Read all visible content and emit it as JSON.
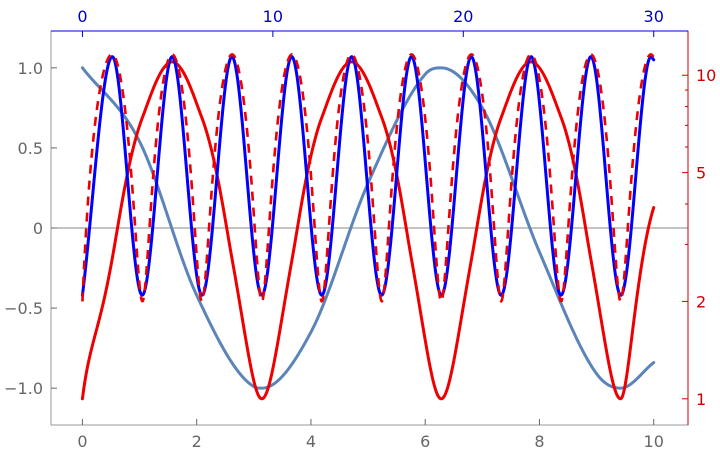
{
  "chart_data": {
    "type": "line",
    "title": "",
    "grid": false,
    "legend": "none",
    "axes": {
      "bottom": {
        "label": "",
        "range": [
          -0.55,
          10.6
        ],
        "ticks": [
          0,
          2,
          4,
          6,
          8,
          10
        ],
        "tick_labels": [
          "0",
          "2",
          "4",
          "6",
          "8",
          "10"
        ],
        "color": "#666666"
      },
      "left": {
        "label": "",
        "range": [
          -1.23,
          1.23
        ],
        "ticks": [
          -1.0,
          -0.5,
          0,
          0.5,
          1.0
        ],
        "tick_labels": [
          "−1.0",
          "−0.5",
          "0",
          "0.5",
          "1.0"
        ],
        "color": "#666666"
      },
      "top": {
        "label": "",
        "range": [
          -1.65,
          31.8
        ],
        "ticks": [
          0,
          10,
          20,
          30
        ],
        "tick_labels": [
          "0",
          "10",
          "20",
          "30"
        ],
        "color": "#0000cc"
      },
      "right": {
        "label": "",
        "scale": "log",
        "range": [
          0.83,
          13.7
        ],
        "ticks": [
          1,
          2,
          5,
          10
        ],
        "tick_labels": [
          "1",
          "2",
          "5",
          "10"
        ],
        "color": "#cc0000"
      }
    },
    "series": [
      {
        "description": "cos(x), plotted against bottom and left axes",
        "color": "#5b84b8",
        "axes": [
          "bottom",
          "left"
        ],
        "x": [
          0,
          1,
          2,
          3,
          3.14,
          4,
          5,
          6,
          6.28,
          7,
          8,
          9,
          9.42,
          10
        ],
        "y": [
          1.0,
          0.54,
          -0.42,
          -0.99,
          -1.0,
          -0.65,
          0.28,
          0.96,
          1.0,
          0.75,
          -0.15,
          -0.91,
          -1.0,
          -0.84
        ]
      },
      {
        "description": "exp(1 - cos(x)) oscillation with period 2π/3 on the bottom axis, plotted against bottom and right axes",
        "color": "#ee0000",
        "axes": [
          "bottom",
          "right"
        ],
        "x": [
          0,
          0.52,
          1.05,
          1.57,
          2.09,
          2.62,
          3.14,
          3.67,
          4.19,
          4.71,
          5.24,
          5.76,
          6.28,
          6.81,
          7.33,
          7.85,
          8.38,
          8.9,
          9.42,
          10
        ],
        "y": [
          1.0,
          2.7,
          7.4,
          11.0,
          7.4,
          2.7,
          1.0,
          2.7,
          7.4,
          11.0,
          7.4,
          2.7,
          1.0,
          2.7,
          7.4,
          11.0,
          7.4,
          2.7,
          1.0,
          3.9
        ]
      },
      {
        "description": "fast oscillation, period 2π on the top axis, plotted against top and left axes",
        "color": "#0000ff",
        "axes": [
          "top",
          "left"
        ],
        "x": [
          0,
          1.57,
          3.14,
          4.71,
          6.28,
          7.85,
          9.42,
          10.99,
          12.57,
          14.14,
          15.71,
          17.28,
          18.85,
          20.42,
          21.99,
          23.56,
          25.13,
          26.7,
          28.27,
          29.85,
          30
        ],
        "y": [
          -0.42,
          1.07,
          -0.42,
          1.07,
          -0.42,
          1.07,
          -0.42,
          1.07,
          -0.42,
          1.07,
          -0.42,
          1.07,
          -0.42,
          1.07,
          -0.42,
          1.07,
          -0.42,
          1.07,
          -0.42,
          1.07,
          1.05
        ]
      },
      {
        "description": "fast oscillation drawn dashed over the blue curve, plotted against bottom and right axes",
        "color": "#ee0000",
        "style": "dashed",
        "axes": [
          "bottom",
          "right"
        ],
        "x": [
          0,
          0.52,
          1.05,
          1.57,
          2.09,
          2.62,
          3.14,
          3.67,
          4.19,
          4.71,
          5.24,
          5.76,
          6.28,
          6.81,
          7.33,
          7.85,
          8.38,
          8.9,
          9.42,
          9.95,
          10
        ],
        "y": [
          2.0,
          11.6,
          2.0,
          11.6,
          2.0,
          11.6,
          2.0,
          11.6,
          2.0,
          11.6,
          2.0,
          11.6,
          2.0,
          11.6,
          2.0,
          11.6,
          2.0,
          11.6,
          2.0,
          11.6,
          11.4
        ]
      }
    ]
  }
}
